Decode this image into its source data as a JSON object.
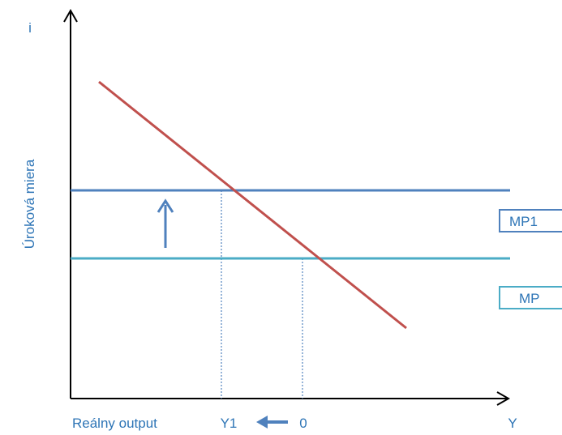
{
  "y_axis_symbol": "i",
  "y_axis_label": "Úroková miera",
  "x_axis_label": "Reálny output",
  "x_axis_symbol": "Y",
  "tick_y1": "Y1",
  "tick_y0": "0",
  "mp1_label": "MP1",
  "mp_label": "MP",
  "colors": {
    "axis": "#000000",
    "label_blue": "#2e75b6",
    "mp1": "#4f81bd",
    "mp": "#4bacc6",
    "demand": "#c0504d",
    "dotted": "#4f81bd",
    "shift_arrow": "#4f81bd"
  }
}
